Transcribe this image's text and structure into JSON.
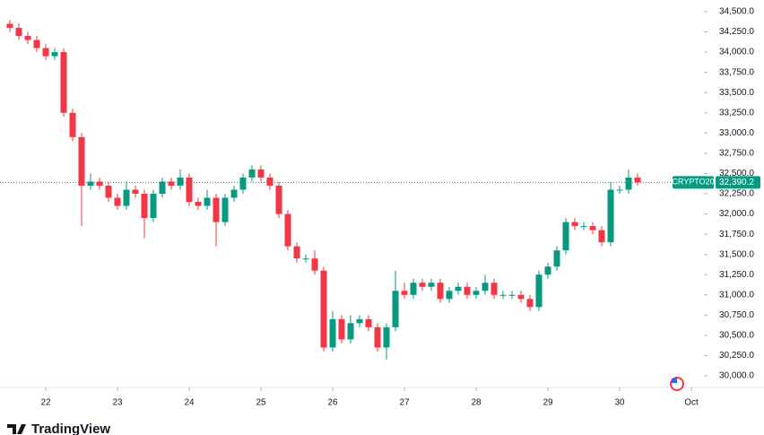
{
  "chart_data": {
    "type": "candlestick",
    "symbol": "CRYPTO20",
    "brand": "TradingView",
    "x": [
      21.5,
      21.625,
      21.75,
      21.875,
      22,
      22.125,
      22.25,
      22.375,
      22.5,
      22.625,
      22.75,
      22.875,
      23,
      23.125,
      23.25,
      23.375,
      23.5,
      23.625,
      23.75,
      23.875,
      24,
      24.125,
      24.25,
      24.375,
      24.5,
      24.625,
      24.75,
      24.875,
      25,
      25.125,
      25.25,
      25.375,
      25.5,
      25.625,
      25.75,
      25.875,
      26,
      26.125,
      26.25,
      26.375,
      26.5,
      26.625,
      26.75,
      26.875,
      27,
      27.125,
      27.25,
      27.375,
      27.5,
      27.625,
      27.75,
      27.875,
      28,
      28.125,
      28.25,
      28.375,
      28.5,
      28.625,
      28.75,
      28.875,
      29,
      29.125,
      29.25,
      29.375,
      29.5,
      29.625,
      29.75,
      29.875,
      30,
      30.125,
      30.25
    ],
    "open": [
      34350,
      34300,
      34200,
      34150,
      34050,
      33950,
      34000,
      33250,
      32950,
      32350,
      32400,
      32350,
      32200,
      32100,
      32300,
      32250,
      31950,
      32250,
      32400,
      32350,
      32450,
      32150,
      32100,
      32200,
      31900,
      32200,
      32300,
      32450,
      32550,
      32450,
      32350,
      32000,
      31600,
      31450,
      31450,
      31300,
      30350,
      30700,
      30450,
      30650,
      30700,
      30600,
      30350,
      30600,
      31050,
      31000,
      31150,
      31100,
      31150,
      30950,
      31050,
      31100,
      31000,
      31050,
      31150,
      31000,
      31000,
      31000,
      30950,
      30850,
      31250,
      31350,
      31550,
      31900,
      31850,
      31850,
      31800,
      31650,
      32300,
      32300,
      32450
    ],
    "high": [
      34400,
      34350,
      34250,
      34200,
      34100,
      34050,
      34050,
      33300,
      33000,
      32500,
      32450,
      32400,
      32250,
      32400,
      32350,
      32300,
      32300,
      32450,
      32450,
      32550,
      32500,
      32200,
      32300,
      32250,
      32250,
      32350,
      32500,
      32600,
      32600,
      32500,
      32400,
      32050,
      31650,
      31500,
      31550,
      31350,
      30800,
      30750,
      30750,
      30750,
      30750,
      30650,
      30650,
      31300,
      31150,
      31200,
      31200,
      31200,
      31200,
      31100,
      31150,
      31150,
      31100,
      31250,
      31200,
      31050,
      31050,
      31050,
      31000,
      31300,
      31400,
      31600,
      31950,
      31950,
      31900,
      31900,
      31850,
      32400,
      32350,
      32550,
      32500
    ],
    "low": [
      34250,
      34150,
      34100,
      34000,
      33900,
      33900,
      33200,
      32900,
      31850,
      32300,
      32300,
      32150,
      32050,
      32050,
      32200,
      31700,
      31900,
      32200,
      32300,
      32300,
      32100,
      32050,
      32050,
      31600,
      31850,
      32150,
      32250,
      32400,
      32400,
      32300,
      31950,
      31550,
      31400,
      31400,
      31250,
      30300,
      30300,
      30400,
      30400,
      30600,
      30550,
      30300,
      30200,
      30550,
      30950,
      30950,
      31050,
      31050,
      30900,
      30900,
      31000,
      30950,
      30950,
      31000,
      30950,
      30950,
      30950,
      30900,
      30800,
      30800,
      31200,
      31300,
      31500,
      31800,
      31800,
      31750,
      31600,
      31600,
      32250,
      32250,
      32350
    ],
    "close": [
      34300,
      34200,
      34150,
      34050,
      33950,
      34000,
      33250,
      32950,
      32350,
      32400,
      32350,
      32200,
      32100,
      32300,
      32250,
      31950,
      32250,
      32400,
      32350,
      32450,
      32150,
      32100,
      32200,
      31900,
      32200,
      32300,
      32450,
      32550,
      32450,
      32350,
      32000,
      31600,
      31450,
      31450,
      31300,
      30350,
      30700,
      30450,
      30650,
      30700,
      30600,
      30350,
      30600,
      31050,
      31000,
      31150,
      31100,
      31150,
      30950,
      31050,
      31100,
      31000,
      31050,
      31150,
      31000,
      31000,
      31000,
      30950,
      30850,
      31250,
      31350,
      31550,
      31900,
      31850,
      31850,
      31800,
      31650,
      32300,
      32300,
      32450,
      32390
    ],
    "up_color": "#089981",
    "down_color": "#f23645",
    "last_price": {
      "value": 32390.2,
      "label": "32,390.2"
    },
    "xlim": [
      21.3625,
      31.175
    ],
    "xticks": [
      22,
      23,
      24,
      25,
      26,
      27,
      28,
      29,
      30,
      {
        "value": 31,
        "label": "Oct"
      }
    ],
    "ylim": [
      29856,
      34644
    ],
    "yticks": [
      {
        "value": 30000,
        "label": "30,000.0"
      },
      {
        "value": 30250,
        "label": "30,250.0"
      },
      {
        "value": 30500,
        "label": "30,500.0"
      },
      {
        "value": 30750,
        "label": "30,750.0"
      },
      {
        "value": 31000,
        "label": "31,000.0"
      },
      {
        "value": 31250,
        "label": "31,250.0"
      },
      {
        "value": 31500,
        "label": "31,500.0"
      },
      {
        "value": 31750,
        "label": "31,750.0"
      },
      {
        "value": 32000,
        "label": "32,000.0"
      },
      {
        "value": 32250,
        "label": "32,250.0"
      },
      {
        "value": 32500,
        "label": "32,500.0"
      },
      {
        "value": 32750,
        "label": "32,750.0"
      },
      {
        "value": 33000,
        "label": "33,000.0"
      },
      {
        "value": 33250,
        "label": "33,250.0"
      },
      {
        "value": 33500,
        "label": "33,500.0"
      },
      {
        "value": 33750,
        "label": "33,750.0"
      },
      {
        "value": 34000,
        "label": "34,000.0"
      },
      {
        "value": 34250,
        "label": "34,250.0"
      },
      {
        "value": 34500,
        "label": "34,500.0"
      }
    ]
  }
}
